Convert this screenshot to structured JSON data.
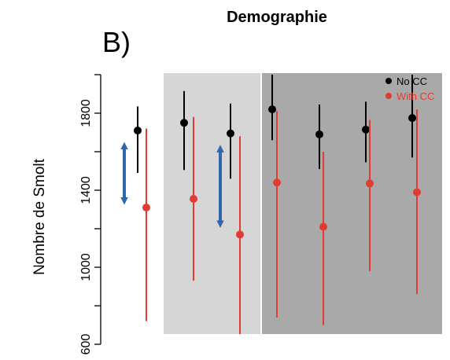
{
  "panel_label": "B)",
  "chart_data": {
    "type": "scatter",
    "title": "Demographie",
    "xlabel": "",
    "ylabel": "Nombre de Smolt",
    "ylim": [
      620,
      2000
    ],
    "yticks": [
      600,
      1000,
      1400,
      1800
    ],
    "grid": false,
    "legend_position": "top-right",
    "background_regions": [
      {
        "from_scenario": 3,
        "to_scenario": 4,
        "color": "#d6d6d6"
      },
      {
        "from_scenario": 5,
        "to_scenario": 8,
        "color": "#a9a9a9"
      }
    ],
    "series": [
      {
        "name": "No CC",
        "color": "#000000",
        "points": [
          {
            "scenario": 1,
            "value": 1710,
            "low": 1490,
            "high": 1835
          },
          {
            "scenario": 3,
            "value": 1750,
            "low": 1505,
            "high": 1915
          },
          {
            "scenario": 4,
            "value": 1695,
            "low": 1460,
            "high": 1850
          },
          {
            "scenario": 5,
            "value": 1820,
            "low": 1660,
            "high": 2000
          },
          {
            "scenario": 6,
            "value": 1690,
            "low": 1510,
            "high": 1845
          },
          {
            "scenario": 7,
            "value": 1715,
            "low": 1545,
            "high": 1860
          },
          {
            "scenario": 8,
            "value": 1775,
            "low": 1570,
            "high": 2000
          }
        ]
      },
      {
        "name": "With CC",
        "color": "#e03c31",
        "points": [
          {
            "scenario": 2,
            "value": 1310,
            "low": 720,
            "high": 1720
          },
          {
            "scenario": 3,
            "value": 1355,
            "low": 930,
            "high": 1780
          },
          {
            "scenario": 4,
            "value": 1170,
            "low": 640,
            "high": 1680
          },
          {
            "scenario": 5,
            "value": 1440,
            "low": 740,
            "high": 1810
          },
          {
            "scenario": 6,
            "value": 1210,
            "low": 700,
            "high": 1600
          },
          {
            "scenario": 7,
            "value": 1435,
            "low": 980,
            "high": 1765
          },
          {
            "scenario": 8,
            "value": 1390,
            "low": 860,
            "high": 1820
          }
        ]
      }
    ],
    "annotations": [
      {
        "type": "double-arrow",
        "color": "#2f67ad",
        "from": 1295,
        "to": 1680,
        "between_scenarios": [
          1,
          2
        ]
      },
      {
        "type": "double-arrow",
        "color": "#2f67ad",
        "from": 1175,
        "to": 1665,
        "between_scenarios": [
          3,
          4
        ]
      }
    ]
  }
}
